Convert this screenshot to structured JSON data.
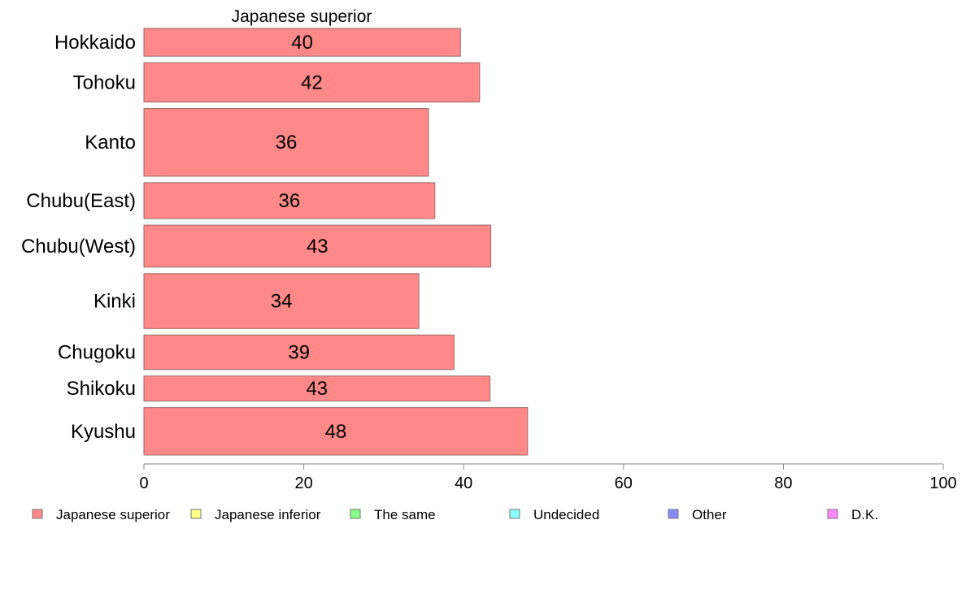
{
  "chart_data": {
    "type": "bar",
    "orientation": "horizontal",
    "title": "Japanese superior",
    "categories": [
      "Hokkaido",
      "Tohoku",
      "Kanto",
      "Chubu(East)",
      "Chubu(West)",
      "Kinki",
      "Chugoku",
      "Shikoku",
      "Kyushu"
    ],
    "series": [
      {
        "name": "Japanese superior",
        "color": "#ff8888",
        "values": [
          39.6,
          42.0,
          35.6,
          36.4,
          43.4,
          34.4,
          38.8,
          43.3,
          48.0
        ],
        "labels": [
          "40",
          "42",
          "36",
          "36",
          "43",
          "34",
          "39",
          "43",
          "48"
        ]
      }
    ],
    "bar_widths": [
      4.1,
      5.8,
      10.0,
      5.3,
      6.2,
      8.1,
      5.1,
      3.7,
      7.0
    ],
    "xlim": [
      0,
      100
    ],
    "xticks": [
      0,
      20,
      40,
      60,
      80,
      100
    ],
    "xlabel": "",
    "ylabel": "",
    "grid": false,
    "legend": {
      "placement": "bottom",
      "entries": [
        {
          "label": "Japanese superior",
          "color": "#ff8888"
        },
        {
          "label": "Japanese inferior",
          "color": "#ffff88"
        },
        {
          "label": "The same",
          "color": "#88ff88"
        },
        {
          "label": "Undecided",
          "color": "#88ffff"
        },
        {
          "label": "Other",
          "color": "#8888ff"
        },
        {
          "label": "D.K.",
          "color": "#ff88ff"
        }
      ]
    }
  }
}
